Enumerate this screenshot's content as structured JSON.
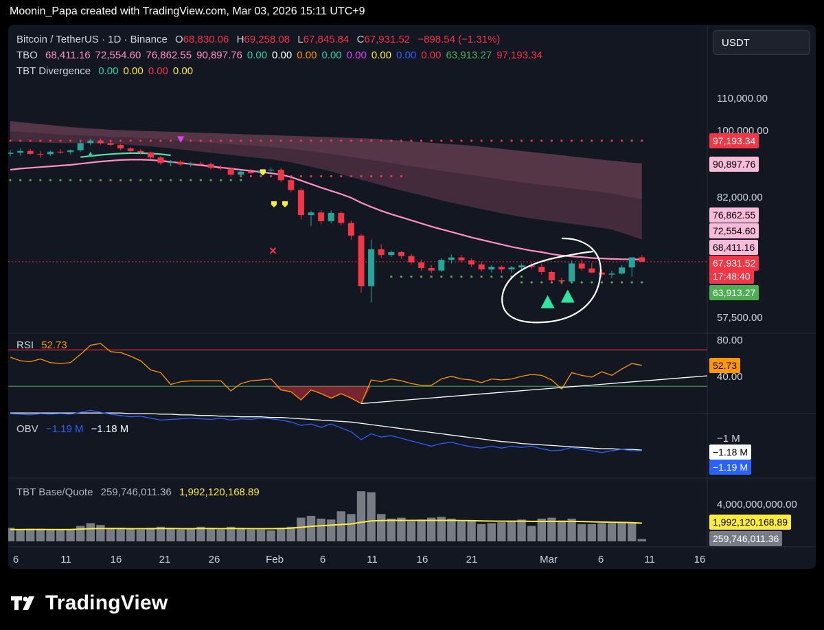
{
  "header": {
    "text": "Moonin_Papa created with TradingView.com, Mar 03, 2026 15:11 UTC+9"
  },
  "legend": {
    "symbol": "Bitcoin / TetherUS · 1D · Binance",
    "o_label": "O",
    "o": "68,830.06",
    "h_label": "H",
    "h": "69,258.08",
    "l_label": "L",
    "l": "67,845.84",
    "c_label": "C",
    "c": "67,931.52",
    "change": "−898.54 (−1.31%)"
  },
  "tbo": {
    "name": "TBO",
    "values": [
      {
        "text": "68,411.16",
        "color": "#ff8fc4"
      },
      {
        "text": "72,554.60",
        "color": "#ff8fc4"
      },
      {
        "text": "76,862.55",
        "color": "#ff8fc4"
      },
      {
        "text": "90,897.76",
        "color": "#ff8fc4"
      },
      {
        "text": "0.00",
        "color": "#26d6a4"
      },
      {
        "text": "0.00",
        "color": "#ffffff"
      },
      {
        "text": "0.00",
        "color": "#ff9800"
      },
      {
        "text": "0.00",
        "color": "#26d6a4"
      },
      {
        "text": "0.00",
        "color": "#e040fb"
      },
      {
        "text": "0.00",
        "color": "#ffeb3b"
      },
      {
        "text": "0.00",
        "color": "#2962ff"
      },
      {
        "text": "0.00",
        "color": "#f23645"
      },
      {
        "text": "63,913.27",
        "color": "#4caf50"
      },
      {
        "text": "97,193.34",
        "color": "#f23645"
      }
    ]
  },
  "divergence": {
    "name": "TBT Divergence",
    "values": [
      {
        "text": "0.00",
        "color": "#26d6a4"
      },
      {
        "text": "0.00",
        "color": "#ffeb3b"
      },
      {
        "text": "0.00",
        "color": "#f23645"
      },
      {
        "text": "0.00",
        "color": "#ffeb3b"
      }
    ]
  },
  "currency_button": "USDT",
  "price_axis": {
    "ticks": [
      "110,000.00",
      "100,000.00",
      "82,000.00",
      "57,500.00"
    ],
    "tick_values": [
      110000,
      100000,
      82000,
      57500
    ],
    "labels": [
      {
        "text": "97,193.34",
        "value": 97193.34,
        "bg": "#f23645",
        "fg": "#ffffff"
      },
      {
        "text": "90,897.76",
        "value": 90897.76,
        "bg": "#f8bbd9",
        "fg": "#000000"
      },
      {
        "text": "76,862.55",
        "value": 76862.55,
        "bg": "#f8bbd9",
        "fg": "#000000"
      },
      {
        "text": "72,554.60",
        "value": 72554.6,
        "bg": "#f8bbd9",
        "fg": "#000000"
      },
      {
        "text": "68,411.16",
        "value": 68411.16,
        "bg": "#f8bbd9",
        "fg": "#000000"
      },
      {
        "text": "67,931.52",
        "value": 67931.52,
        "bg": "#f23645",
        "fg": "#ffffff"
      },
      {
        "text": "63,913.27",
        "value": 63913.27,
        "bg": "#4caf50",
        "fg": "#ffffff"
      }
    ],
    "countdown": "17:48:40"
  },
  "x_axis": {
    "labels": [
      "6",
      "11",
      "16",
      "21",
      "26",
      "Feb",
      "6",
      "11",
      "16",
      "21",
      "Mar",
      "6",
      "11",
      "16"
    ]
  },
  "rsi": {
    "label": "RSI",
    "value": "52.73",
    "ticks": [
      "80.00",
      "40.00"
    ],
    "tick_values": [
      80,
      40
    ],
    "upper": 70,
    "lower": 30
  },
  "obv": {
    "label": "OBV",
    "obv_value": "−1.19 M",
    "ma_value": "−1.18 M",
    "tick": "−1 M",
    "ma_label": "−1.18 M",
    "obv_label": "−1.19 M"
  },
  "volume": {
    "label": "TBT Base/Quote",
    "v1": "259,746,011.36",
    "v2": "1,992,120,168.89",
    "tick": "4,000,000,000.00",
    "tick_value": 4000000000,
    "ma_value": 1992120168.89,
    "last_value": 259746011.36
  },
  "colors": {
    "up": "#26a69a",
    "down": "#f23645",
    "ema": "#ff8fc4",
    "rsi": "#ff9800",
    "obv": "#2962ff",
    "volma": "#ffeb3b"
  },
  "chart_data": {
    "type": "candlestick",
    "title": "Bitcoin / TetherUS · 1D · Binance",
    "x_start": "2026-01-06",
    "x_end": "2026-03-03",
    "ylim": [
      55000,
      115000
    ],
    "price_scale": "log",
    "ohlc": [
      [
        93500,
        94600,
        92800,
        93800
      ],
      [
        93800,
        95000,
        93000,
        94300
      ],
      [
        94300,
        94900,
        93200,
        93500
      ],
      [
        93500,
        94300,
        92400,
        93400
      ],
      [
        93400,
        94500,
        92900,
        94100
      ],
      [
        94100,
        94800,
        93500,
        94000
      ],
      [
        94000,
        94700,
        93300,
        94500
      ],
      [
        94500,
        97000,
        94100,
        96500
      ],
      [
        96500,
        97800,
        95900,
        97200
      ],
      [
        97200,
        97900,
        96100,
        96500
      ],
      [
        96500,
        97300,
        95700,
        96000
      ],
      [
        96000,
        96300,
        94500,
        95000
      ],
      [
        95000,
        95400,
        93800,
        94300
      ],
      [
        94300,
        94800,
        93300,
        93900
      ],
      [
        93900,
        94100,
        92200,
        92500
      ],
      [
        92500,
        92900,
        90500,
        91000
      ],
      [
        91000,
        91800,
        90100,
        91300
      ],
      [
        91300,
        91800,
        90200,
        90600
      ],
      [
        90600,
        91300,
        89900,
        90800
      ],
      [
        90800,
        91400,
        90100,
        90700
      ],
      [
        90700,
        91200,
        89300,
        89700
      ],
      [
        89700,
        90400,
        89100,
        89500
      ],
      [
        89500,
        89800,
        87400,
        87900
      ],
      [
        87900,
        89000,
        87400,
        88700
      ],
      [
        88700,
        89400,
        88100,
        88300
      ],
      [
        88300,
        89300,
        87700,
        89000
      ],
      [
        89000,
        89800,
        88300,
        89200
      ],
      [
        89200,
        89700,
        86000,
        86500
      ],
      [
        86500,
        87500,
        83500,
        84000
      ],
      [
        84000,
        84500,
        77000,
        78000
      ],
      [
        78000,
        79000,
        75500,
        78600
      ],
      [
        78600,
        79200,
        75900,
        76600
      ],
      [
        76600,
        79100,
        76100,
        78500
      ],
      [
        78500,
        78900,
        75600,
        76200
      ],
      [
        76200,
        76800,
        72500,
        73400
      ],
      [
        73400,
        73800,
        62000,
        63200
      ],
      [
        63200,
        72500,
        60200,
        70500
      ],
      [
        70500,
        71600,
        68700,
        69300
      ],
      [
        69300,
        70300,
        68900,
        69900
      ],
      [
        69900,
        70100,
        68500,
        69100
      ],
      [
        69100,
        69500,
        67400,
        67800
      ],
      [
        67800,
        68400,
        66100,
        66700
      ],
      [
        66700,
        67300,
        65700,
        66200
      ],
      [
        66200,
        68700,
        65900,
        68300
      ],
      [
        68300,
        69400,
        67600,
        68800
      ],
      [
        68800,
        69300,
        67700,
        68200
      ],
      [
        68200,
        68600,
        66900,
        67400
      ],
      [
        67400,
        68000,
        66000,
        66400
      ],
      [
        66400,
        67300,
        65800,
        66900
      ],
      [
        66900,
        67200,
        65700,
        66400
      ],
      [
        66400,
        67100,
        65700,
        66800
      ],
      [
        66800,
        67600,
        66500,
        67200
      ],
      [
        67200,
        67800,
        66400,
        66900
      ],
      [
        66900,
        67600,
        65400,
        65900
      ],
      [
        65900,
        66200,
        63800,
        64300
      ],
      [
        64300,
        64800,
        63500,
        64100
      ],
      [
        64100,
        68200,
        63800,
        67600
      ],
      [
        67600,
        68400,
        66200,
        66600
      ],
      [
        66600,
        67700,
        65600,
        65800
      ],
      [
        65800,
        66400,
        64800,
        65400
      ],
      [
        65400,
        66200,
        64700,
        65600
      ],
      [
        65600,
        67300,
        65400,
        66800
      ],
      [
        66800,
        68800,
        65000,
        68830
      ],
      [
        68830,
        69258,
        67846,
        67931
      ]
    ],
    "ema": [
      89200,
      89500,
      89700,
      89900,
      90100,
      90300,
      90500,
      90800,
      91100,
      91400,
      91600,
      91800,
      91900,
      91900,
      91800,
      91600,
      91300,
      91000,
      90700,
      90400,
      90100,
      89800,
      89500,
      89200,
      88900,
      88600,
      88300,
      87900,
      87300,
      86400,
      85500,
      84600,
      83800,
      83000,
      82100,
      80900,
      79900,
      79000,
      78200,
      77500,
      76800,
      76100,
      75400,
      74800,
      74200,
      73600,
      73000,
      72500,
      72000,
      71500,
      71000,
      70600,
      70200,
      69900,
      69500,
      69200,
      69000,
      68900,
      68700,
      68600,
      68500,
      68450,
      68420,
      68411
    ],
    "cloud_upper": [
      103000,
      102700,
      102400,
      102100,
      101800,
      101500,
      101200,
      101000,
      100800,
      100600,
      100400,
      100300,
      100200,
      100100,
      100000,
      99900,
      99800,
      99700,
      99600,
      99500,
      99400,
      99300,
      99200,
      99100,
      99000,
      98900,
      98800,
      98700,
      98600,
      98500,
      98400,
      98300,
      98200,
      98100,
      98000,
      97900,
      97800,
      97600,
      97400,
      97200,
      97000,
      96800,
      96600,
      96400,
      96200,
      96000,
      95800,
      95500,
      95200,
      94900,
      94600,
      94300,
      94000,
      93700,
      93400,
      93100,
      92800,
      92500,
      92200,
      91900,
      91600,
      91400,
      91100,
      90898
    ],
    "cloud_lower": [
      97000,
      96900,
      96800,
      96700,
      96600,
      96500,
      96500,
      96500,
      96500,
      96400,
      96300,
      96200,
      96000,
      95800,
      95600,
      95300,
      95000,
      94700,
      94400,
      94100,
      93800,
      93500,
      93200,
      92900,
      92600,
      92300,
      92000,
      91600,
      91200,
      90600,
      90000,
      89400,
      88700,
      88000,
      87300,
      86600,
      85900,
      85200,
      84500,
      83900,
      83300,
      82700,
      82100,
      81500,
      80900,
      80400,
      79900,
      79400,
      78900,
      78400,
      78000,
      77600,
      77200,
      76900,
      76600,
      76300,
      76000,
      75700,
      75400,
      75100,
      74700,
      74000,
      73300,
      72555
    ],
    "upper_dots": 97193.34,
    "lower_dots": 63913.27,
    "rsi_values": [
      62,
      58,
      57,
      60,
      56,
      55,
      56,
      65,
      75,
      77,
      68,
      67,
      63,
      58,
      48,
      45,
      32,
      35,
      36,
      36,
      36,
      36,
      25,
      33,
      36,
      37,
      38,
      26,
      24,
      15,
      26,
      22,
      17,
      22,
      17,
      11,
      37,
      35,
      38,
      36,
      33,
      31,
      31,
      38,
      41,
      38,
      37,
      34,
      38,
      37,
      38,
      41,
      43,
      42,
      37,
      27,
      45,
      42,
      40,
      46,
      42,
      49,
      55,
      53
    ],
    "obv_values": [
      -0.62,
      -0.63,
      -0.64,
      -0.62,
      -0.63,
      -0.62,
      -0.63,
      -0.6,
      -0.57,
      -0.6,
      -0.63,
      -0.65,
      -0.67,
      -0.66,
      -0.69,
      -0.72,
      -0.71,
      -0.7,
      -0.69,
      -0.7,
      -0.71,
      -0.69,
      -0.72,
      -0.7,
      -0.71,
      -0.69,
      -0.7,
      -0.72,
      -0.75,
      -0.8,
      -0.78,
      -0.83,
      -0.78,
      -0.84,
      -0.9,
      -1.02,
      -0.93,
      -0.98,
      -0.96,
      -1.0,
      -1.04,
      -1.08,
      -1.12,
      -1.08,
      -1.06,
      -1.1,
      -1.13,
      -1.15,
      -1.12,
      -1.15,
      -1.12,
      -1.14,
      -1.12,
      -1.16,
      -1.19,
      -1.18,
      -1.14,
      -1.17,
      -1.19,
      -1.22,
      -1.19,
      -1.17,
      -1.19,
      -1.19
    ],
    "obv_ma": [
      -0.61,
      -0.61,
      -0.61,
      -0.61,
      -0.61,
      -0.61,
      -0.61,
      -0.61,
      -0.61,
      -0.61,
      -0.61,
      -0.61,
      -0.62,
      -0.62,
      -0.62,
      -0.63,
      -0.63,
      -0.64,
      -0.64,
      -0.65,
      -0.65,
      -0.66,
      -0.66,
      -0.67,
      -0.67,
      -0.67,
      -0.68,
      -0.68,
      -0.69,
      -0.7,
      -0.71,
      -0.72,
      -0.73,
      -0.74,
      -0.75,
      -0.77,
      -0.79,
      -0.81,
      -0.83,
      -0.85,
      -0.87,
      -0.89,
      -0.91,
      -0.93,
      -0.95,
      -0.97,
      -0.99,
      -1.01,
      -1.03,
      -1.05,
      -1.06,
      -1.08,
      -1.09,
      -1.1,
      -1.11,
      -1.12,
      -1.13,
      -1.14,
      -1.15,
      -1.16,
      -1.16,
      -1.17,
      -1.17,
      -1.18
    ],
    "volume_values": [
      1.5,
      1.3,
      1.4,
      1.4,
      1.3,
      1.3,
      1.3,
      1.7,
      2.0,
      1.8,
      1.5,
      1.5,
      1.4,
      1.3,
      1.5,
      1.6,
      1.5,
      1.3,
      1.4,
      1.6,
      1.5,
      1.3,
      1.6,
      1.4,
      1.3,
      1.3,
      1.2,
      1.5,
      1.6,
      2.6,
      2.8,
      2.5,
      2.4,
      3.3,
      3.0,
      5.5,
      5.4,
      3.0,
      2.5,
      2.6,
      2.2,
      2.4,
      2.6,
      2.7,
      2.5,
      2.2,
      2.3,
      1.9,
      2.0,
      2.1,
      2.2,
      2.4,
      1.7,
      2.5,
      2.6,
      2.3,
      2.5,
      1.9,
      1.9,
      2.0,
      2.0,
      2.1,
      2.0,
      0.26
    ],
    "volume_ma": [
      1.3,
      1.3,
      1.3,
      1.3,
      1.3,
      1.3,
      1.3,
      1.35,
      1.4,
      1.42,
      1.42,
      1.42,
      1.4,
      1.4,
      1.4,
      1.42,
      1.42,
      1.4,
      1.4,
      1.42,
      1.42,
      1.4,
      1.42,
      1.42,
      1.4,
      1.4,
      1.4,
      1.42,
      1.45,
      1.55,
      1.65,
      1.72,
      1.78,
      1.85,
      1.92,
      2.1,
      2.25,
      2.28,
      2.3,
      2.3,
      2.3,
      2.3,
      2.3,
      2.3,
      2.3,
      2.28,
      2.27,
      2.25,
      2.23,
      2.22,
      2.22,
      2.22,
      2.2,
      2.2,
      2.2,
      2.2,
      2.2,
      2.18,
      2.15,
      2.12,
      2.1,
      2.08,
      2.05,
      2.0
    ]
  }
}
